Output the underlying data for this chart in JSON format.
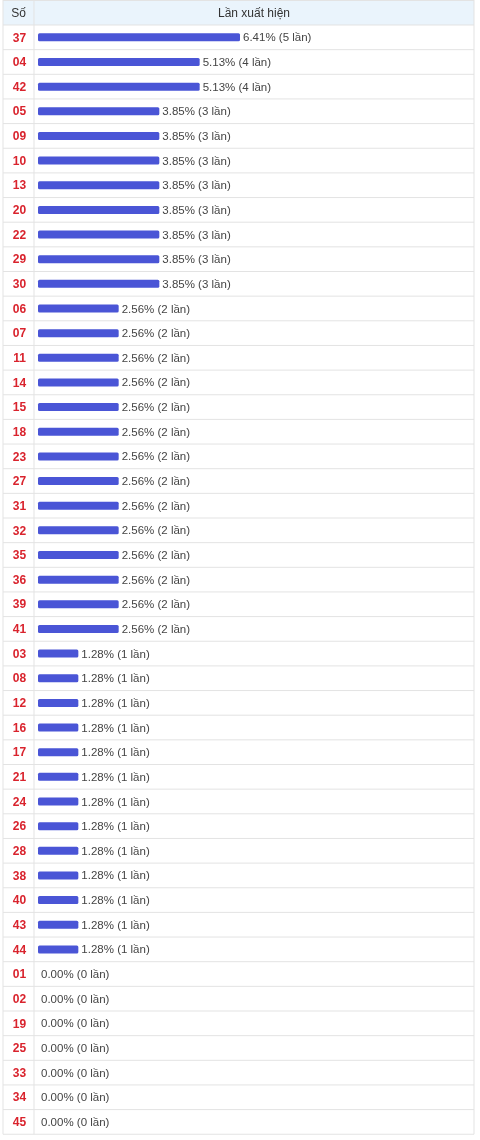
{
  "chart_data": {
    "type": "bar",
    "orientation": "horizontal",
    "xlabel": "Lần xuất hiện",
    "ylabel": "Số",
    "categories": [
      "37",
      "04",
      "42",
      "05",
      "09",
      "10",
      "13",
      "20",
      "22",
      "29",
      "30",
      "06",
      "07",
      "11",
      "14",
      "15",
      "18",
      "23",
      "27",
      "31",
      "32",
      "35",
      "36",
      "39",
      "41",
      "03",
      "08",
      "12",
      "16",
      "17",
      "21",
      "24",
      "26",
      "28",
      "38",
      "40",
      "43",
      "44",
      "01",
      "02",
      "19",
      "25",
      "33",
      "34",
      "45"
    ],
    "values": [
      6.41,
      5.13,
      5.13,
      3.85,
      3.85,
      3.85,
      3.85,
      3.85,
      3.85,
      3.85,
      3.85,
      2.56,
      2.56,
      2.56,
      2.56,
      2.56,
      2.56,
      2.56,
      2.56,
      2.56,
      2.56,
      2.56,
      2.56,
      2.56,
      2.56,
      1.28,
      1.28,
      1.28,
      1.28,
      1.28,
      1.28,
      1.28,
      1.28,
      1.28,
      1.28,
      1.28,
      1.28,
      1.28,
      0,
      0,
      0,
      0,
      0,
      0,
      0
    ],
    "color": "#4a55d6",
    "value_labels": [
      "6.41% (5 lần)",
      "5.13% (4 lần)",
      "5.13% (4 lần)",
      "3.85% (3 lần)",
      "3.85% (3 lần)",
      "3.85% (3 lần)",
      "3.85% (3 lần)",
      "3.85% (3 lần)",
      "3.85% (3 lần)",
      "3.85% (3 lần)",
      "3.85% (3 lần)",
      "2.56% (2 lần)",
      "2.56% (2 lần)",
      "2.56% (2 lần)",
      "2.56% (2 lần)",
      "2.56% (2 lần)",
      "2.56% (2 lần)",
      "2.56% (2 lần)",
      "2.56% (2 lần)",
      "2.56% (2 lần)",
      "2.56% (2 lần)",
      "2.56% (2 lần)",
      "2.56% (2 lần)",
      "2.56% (2 lần)",
      "2.56% (2 lần)",
      "1.28% (1 lần)",
      "1.28% (1 lần)",
      "1.28% (1 lần)",
      "1.28% (1 lần)",
      "1.28% (1 lần)",
      "1.28% (1 lần)",
      "1.28% (1 lần)",
      "1.28% (1 lần)",
      "1.28% (1 lần)",
      "1.28% (1 lần)",
      "1.28% (1 lần)",
      "1.28% (1 lần)",
      "1.28% (1 lần)",
      "0.00% (0 lần)",
      "0.00% (0 lần)",
      "0.00% (0 lần)",
      "0.00% (0 lần)",
      "0.00% (0 lần)",
      "0.00% (0 lần)",
      "0.00% (0 lần)"
    ]
  }
}
